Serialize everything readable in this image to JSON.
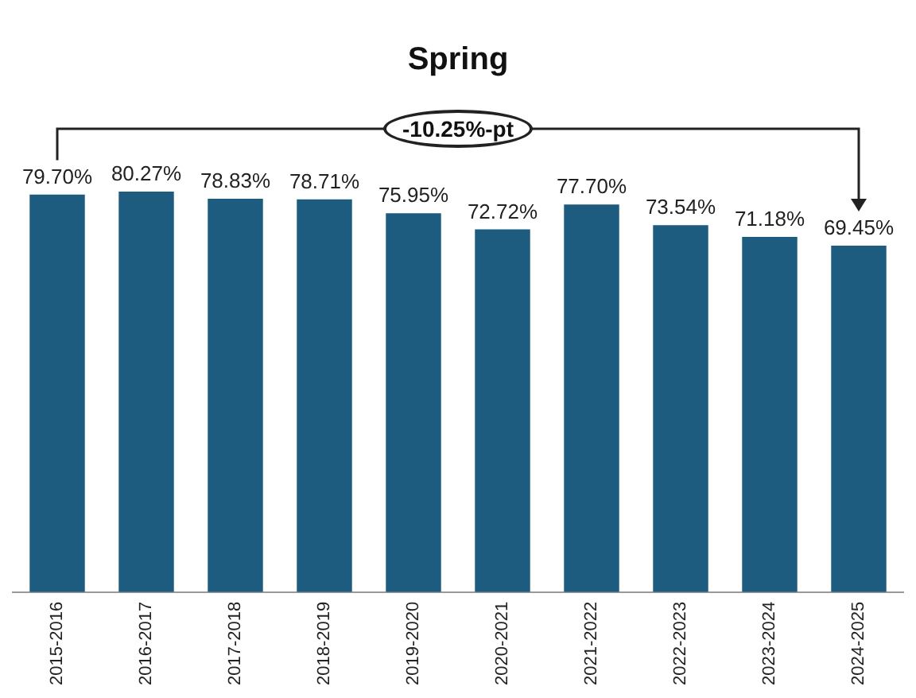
{
  "chart_data": {
    "type": "bar",
    "title": "Spring",
    "categories": [
      "2015-2016",
      "2016-2017",
      "2017-2018",
      "2018-2019",
      "2019-2020",
      "2020-2021",
      "2021-2022",
      "2022-2023",
      "2023-2024",
      "2024-2025"
    ],
    "values": [
      79.7,
      80.27,
      78.83,
      78.71,
      75.95,
      72.72,
      77.7,
      73.54,
      71.18,
      69.45
    ],
    "value_labels": [
      "79.70%",
      "80.27%",
      "78.83%",
      "78.71%",
      "75.95%",
      "72.72%",
      "77.70%",
      "73.54%",
      "71.18%",
      "69.45%"
    ],
    "color": "#1d5b7f",
    "annotations": [
      "-10.25%-pt"
    ]
  }
}
